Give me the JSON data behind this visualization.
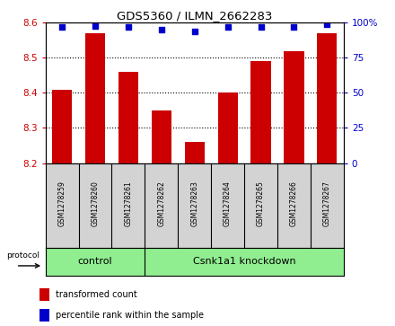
{
  "title": "GDS5360 / ILMN_2662283",
  "samples": [
    "GSM1278259",
    "GSM1278260",
    "GSM1278261",
    "GSM1278262",
    "GSM1278263",
    "GSM1278264",
    "GSM1278265",
    "GSM1278266",
    "GSM1278267"
  ],
  "bar_values": [
    8.41,
    8.57,
    8.46,
    8.35,
    8.26,
    8.4,
    8.49,
    8.52,
    8.57
  ],
  "percentile_values": [
    97,
    98,
    97,
    95,
    94,
    97,
    97,
    97,
    99
  ],
  "ymin": 8.2,
  "ymax": 8.6,
  "yticks": [
    8.2,
    8.3,
    8.4,
    8.5,
    8.6
  ],
  "right_yticks": [
    0,
    25,
    50,
    75,
    100
  ],
  "bar_color": "#cc0000",
  "dot_color": "#0000cc",
  "plot_bg_color": "#ffffff",
  "group1_label": "control",
  "group2_label": "Csnk1a1 knockdown",
  "group1_indices": [
    0,
    1,
    2
  ],
  "group2_indices": [
    3,
    4,
    5,
    6,
    7,
    8
  ],
  "group_bg_color": "#90ee90",
  "sample_bg_color": "#d3d3d3",
  "legend_bar_label": "transformed count",
  "legend_dot_label": "percentile rank within the sample",
  "protocol_label": "protocol"
}
